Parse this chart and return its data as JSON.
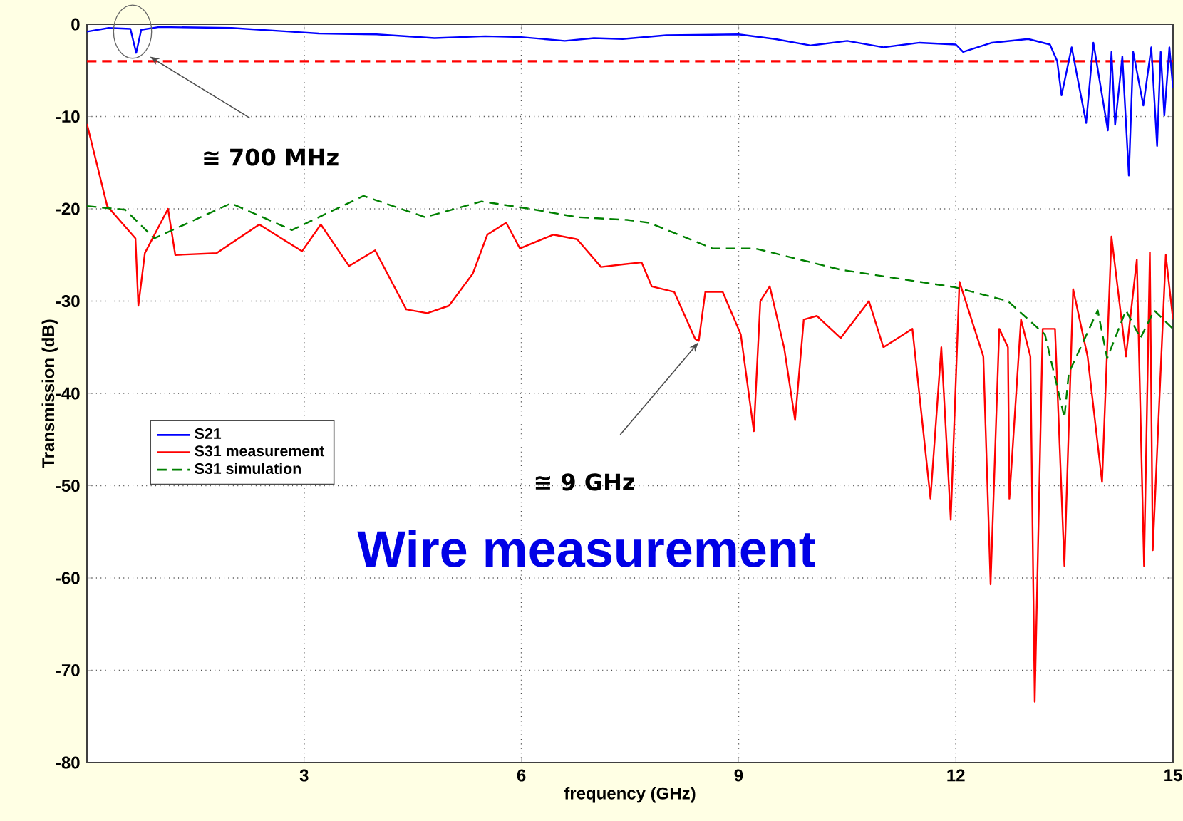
{
  "chart_data": {
    "type": "line",
    "title": "Wire measurement",
    "xlabel": "frequency (GHz)",
    "ylabel": "Transmission (dB)",
    "xlim": [
      0,
      15
    ],
    "ylim": [
      -80,
      0
    ],
    "xticks": [
      3,
      6,
      9,
      12,
      15
    ],
    "yticks": [
      -80,
      -70,
      -60,
      -50,
      -40,
      -30,
      -20,
      -10,
      0
    ],
    "grid": true,
    "legend": "left",
    "ref_lines": [
      {
        "axis": "y",
        "value": -4,
        "color": "#ff0000",
        "line_style": "dashed"
      }
    ],
    "annotations": [
      "≅ 700 MHz",
      "≅ 9 GHz"
    ],
    "series": [
      {
        "name": "S21",
        "color": "#0000ff",
        "line_style": "solid",
        "x": [
          0,
          0.3,
          0.6,
          0.68,
          0.75,
          1,
          2,
          2.8,
          3.2,
          4,
          4.8,
          5.5,
          6,
          6.6,
          7,
          7.4,
          8,
          9,
          9.5,
          10,
          10.5,
          11,
          11.5,
          12,
          12.1,
          12.5,
          13,
          13.3,
          13.4,
          13.46,
          13.6,
          13.8,
          13.9,
          14.1,
          14.15,
          14.2,
          14.3,
          14.39,
          14.45,
          14.59,
          14.7,
          14.78,
          14.83,
          14.88,
          14.95,
          15
        ],
        "values": [
          -0.8,
          -0.4,
          -0.5,
          -3.1,
          -0.6,
          -0.3,
          -0.4,
          -0.8,
          -1.0,
          -1.1,
          -1.5,
          -1.3,
          -1.4,
          -1.8,
          -1.5,
          -1.6,
          -1.2,
          -1.1,
          -1.6,
          -2.3,
          -1.8,
          -2.5,
          -2.0,
          -2.2,
          -3.0,
          -2.0,
          -1.6,
          -2.2,
          -4.0,
          -7.7,
          -2.5,
          -10.7,
          -2.0,
          -11.5,
          -3.0,
          -10.9,
          -3.5,
          -16.4,
          -3.0,
          -8.8,
          -2.5,
          -13.2,
          -3.0,
          -9.9,
          -2.5,
          -6.9
        ]
      },
      {
        "name": "S31 measurement",
        "color": "#ff0000",
        "line_style": "solid",
        "x": [
          0,
          0.28,
          0.67,
          0.71,
          0.8,
          1.12,
          1.22,
          1.79,
          2.38,
          2.97,
          3.23,
          3.62,
          3.98,
          4.41,
          4.7,
          5.0,
          5.33,
          5.53,
          5.79,
          5.98,
          6.44,
          6.77,
          7.1,
          7.42,
          7.66,
          7.8,
          8.11,
          8.4,
          8.45,
          8.54,
          8.78,
          9.03,
          9.21,
          9.3,
          9.43,
          9.63,
          9.78,
          9.9,
          10.08,
          10.41,
          10.8,
          11.0,
          11.4,
          11.65,
          11.8,
          11.93,
          12.05,
          12.38,
          12.48,
          12.6,
          12.72,
          12.74,
          12.9,
          13.03,
          13.09,
          13.2,
          13.37,
          13.5,
          13.62,
          13.82,
          14.02,
          14.15,
          14.35,
          14.5,
          14.6,
          14.68,
          14.72,
          14.9,
          15
        ],
        "values": [
          -10.8,
          -19.7,
          -23.2,
          -30.5,
          -24.8,
          -20,
          -25,
          -24.8,
          -21.7,
          -24.6,
          -21.7,
          -26.2,
          -24.5,
          -30.9,
          -31.3,
          -30.5,
          -27,
          -22.8,
          -21.5,
          -24.3,
          -22.8,
          -23.3,
          -26.3,
          -26,
          -25.8,
          -28.4,
          -29,
          -34.1,
          -34.3,
          -29,
          -29,
          -33.6,
          -44.1,
          -30,
          -28.4,
          -35.1,
          -42.9,
          -32,
          -31.6,
          -34,
          -30,
          -35,
          -33,
          -51.4,
          -35,
          -53.7,
          -27.9,
          -36,
          -60.7,
          -33,
          -35,
          -51.4,
          -32,
          -36,
          -73.4,
          -33,
          -33,
          -58.7,
          -28.7,
          -36,
          -49.6,
          -23,
          -36,
          -25.5,
          -58.7,
          -24.7,
          -57,
          -25,
          -32
        ]
      },
      {
        "name": "S31 simulation",
        "color": "#008000",
        "line_style": "dashed",
        "x": [
          0,
          0.53,
          0.93,
          1.99,
          2.83,
          3.82,
          4.67,
          5.45,
          6.12,
          6.77,
          7.46,
          7.76,
          8.64,
          9.23,
          10.41,
          11.99,
          12.72,
          13.23,
          13.5,
          13.56,
          13.96,
          14.09,
          14.35,
          14.55,
          14.74,
          15
        ],
        "values": [
          -19.7,
          -20.1,
          -23.2,
          -19.4,
          -22.3,
          -18.6,
          -20.9,
          -19.2,
          -20,
          -20.9,
          -21.2,
          -21.5,
          -24.3,
          -24.3,
          -26.6,
          -28.5,
          -30,
          -33.6,
          -42.6,
          -37.8,
          -31,
          -36.2,
          -31,
          -34,
          -31,
          -33
        ]
      }
    ]
  }
}
